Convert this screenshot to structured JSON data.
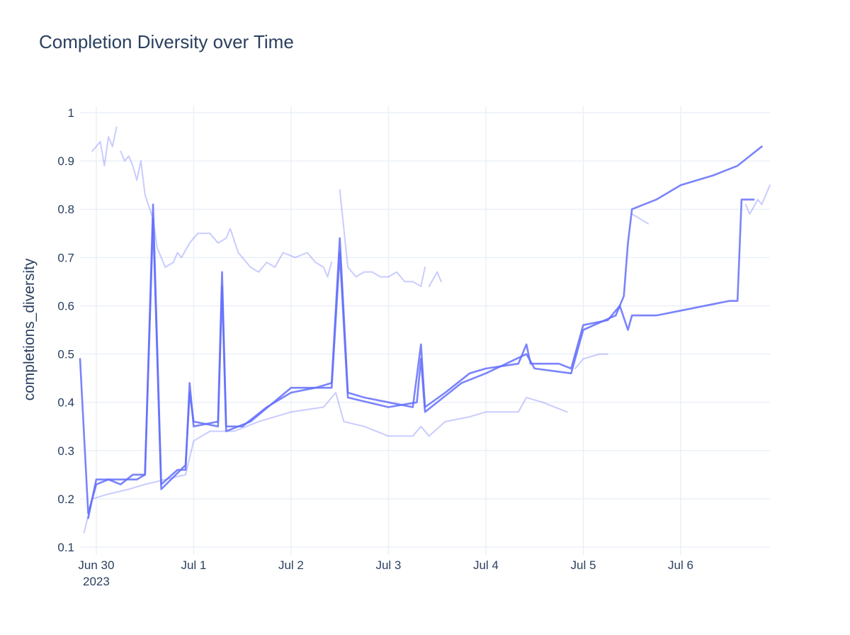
{
  "chart_data": {
    "type": "line",
    "title": "Completion Diversity over Time",
    "xlabel": "",
    "ylabel": "completions_diversity",
    "ylim": [
      0.1,
      1.0
    ],
    "xlim": [
      "2023-06-29T20:00",
      "2023-07-06T22:00"
    ],
    "x_ticks": [
      {
        "x": "2023-06-30T00:00",
        "label": "Jun 30",
        "sublabel": "2023"
      },
      {
        "x": "2023-07-01T00:00",
        "label": "Jul 1"
      },
      {
        "x": "2023-07-02T00:00",
        "label": "Jul 2"
      },
      {
        "x": "2023-07-03T00:00",
        "label": "Jul 3"
      },
      {
        "x": "2023-07-04T00:00",
        "label": "Jul 4"
      },
      {
        "x": "2023-07-05T00:00",
        "label": "Jul 5"
      },
      {
        "x": "2023-07-06T00:00",
        "label": "Jul 6"
      }
    ],
    "y_ticks": [
      0.1,
      0.2,
      0.3,
      0.4,
      0.5,
      0.6,
      0.7,
      0.8,
      0.9,
      1
    ],
    "y_tick_labels": [
      "0.1",
      "0.2",
      "0.3",
      "0.4",
      "0.5",
      "0.6",
      "0.7",
      "0.8",
      "0.9",
      "1"
    ],
    "grid": true,
    "legend": "none",
    "color": "#636efa",
    "series": [
      {
        "values": [
          [
            "2023-06-29T20:00",
            0.49
          ],
          [
            "2023-06-29T22:00",
            0.17
          ],
          [
            "2023-06-30T00:00",
            0.23
          ],
          [
            "2023-06-30T03:00",
            0.24
          ],
          [
            "2023-06-30T06:00",
            0.23
          ],
          [
            "2023-06-30T09:00",
            0.25
          ],
          [
            "2023-06-30T12:00",
            0.25
          ],
          [
            "2023-06-30T14:00",
            0.81
          ],
          [
            "2023-06-30T16:00",
            0.23
          ],
          [
            "2023-06-30T20:00",
            0.26
          ],
          [
            "2023-06-30T22:00",
            0.26
          ],
          [
            "2023-06-30T23:00",
            0.44
          ],
          [
            "2023-07-01T00:00",
            0.35
          ],
          [
            "2023-07-01T06:00",
            0.36
          ],
          [
            "2023-07-01T07:00",
            0.67
          ],
          [
            "2023-07-01T08:00",
            0.35
          ],
          [
            "2023-07-01T12:00",
            0.35
          ],
          [
            "2023-07-01T18:00",
            0.39
          ],
          [
            "2023-07-02T00:00",
            0.42
          ],
          [
            "2023-07-02T06:00",
            0.43
          ],
          [
            "2023-07-02T10:00",
            0.44
          ],
          [
            "2023-07-02T12:00",
            0.74
          ],
          [
            "2023-07-02T14:00",
            0.42
          ],
          [
            "2023-07-02T18:00",
            0.41
          ],
          [
            "2023-07-03T00:00",
            0.4
          ],
          [
            "2023-07-03T06:00",
            0.39
          ],
          [
            "2023-07-03T08:00",
            0.52
          ],
          [
            "2023-07-03T09:00",
            0.39
          ],
          [
            "2023-07-03T14:00",
            0.42
          ],
          [
            "2023-07-03T20:00",
            0.46
          ],
          [
            "2023-07-04T00:00",
            0.47
          ],
          [
            "2023-07-04T08:00",
            0.48
          ],
          [
            "2023-07-04T10:00",
            0.52
          ],
          [
            "2023-07-04T11:00",
            0.48
          ],
          [
            "2023-07-04T18:00",
            0.48
          ],
          [
            "2023-07-04T21:00",
            0.47
          ],
          [
            "2023-07-05T00:00",
            0.56
          ],
          [
            "2023-07-05T06:00",
            0.57
          ],
          [
            "2023-07-05T09:00",
            0.6
          ],
          [
            "2023-07-05T11:00",
            0.55
          ],
          [
            "2023-07-05T12:00",
            0.58
          ],
          [
            "2023-07-05T18:00",
            0.58
          ],
          [
            "2023-07-06T00:00",
            0.59
          ],
          [
            "2023-07-06T12:00",
            0.61
          ],
          [
            "2023-07-06T14:00",
            0.61
          ],
          [
            "2023-07-06T15:00",
            0.82
          ],
          [
            "2023-07-06T18:00",
            0.82
          ]
        ]
      },
      {
        "values": [
          [
            "2023-06-29T22:00",
            0.16
          ],
          [
            "2023-06-30T00:00",
            0.24
          ],
          [
            "2023-06-30T05:00",
            0.24
          ],
          [
            "2023-06-30T10:00",
            0.24
          ],
          [
            "2023-06-30T12:00",
            0.25
          ],
          [
            "2023-06-30T14:00",
            0.78
          ],
          [
            "2023-06-30T16:00",
            0.22
          ],
          [
            "2023-06-30T22:00",
            0.27
          ],
          [
            "2023-06-30T23:00",
            0.42
          ],
          [
            "2023-07-01T00:00",
            0.36
          ],
          [
            "2023-07-01T06:00",
            0.35
          ],
          [
            "2023-07-01T07:00",
            0.64
          ],
          [
            "2023-07-01T08:00",
            0.34
          ],
          [
            "2023-07-01T14:00",
            0.36
          ],
          [
            "2023-07-02T00:00",
            0.43
          ],
          [
            "2023-07-02T10:00",
            0.43
          ],
          [
            "2023-07-02T12:00",
            0.71
          ],
          [
            "2023-07-02T14:00",
            0.41
          ],
          [
            "2023-07-03T00:00",
            0.39
          ],
          [
            "2023-07-03T07:00",
            0.4
          ],
          [
            "2023-07-03T08:00",
            0.49
          ],
          [
            "2023-07-03T09:00",
            0.38
          ],
          [
            "2023-07-03T18:00",
            0.44
          ],
          [
            "2023-07-04T00:00",
            0.46
          ],
          [
            "2023-07-04T10:00",
            0.5
          ],
          [
            "2023-07-04T12:00",
            0.47
          ],
          [
            "2023-07-04T21:00",
            0.46
          ],
          [
            "2023-07-05T00:00",
            0.55
          ],
          [
            "2023-07-05T08:00",
            0.58
          ],
          [
            "2023-07-05T10:00",
            0.62
          ],
          [
            "2023-07-05T11:00",
            0.73
          ],
          [
            "2023-07-05T12:00",
            0.8
          ],
          [
            "2023-07-05T18:00",
            0.82
          ],
          [
            "2023-07-06T00:00",
            0.85
          ],
          [
            "2023-07-06T08:00",
            0.87
          ],
          [
            "2023-07-06T14:00",
            0.89
          ],
          [
            "2023-07-06T20:00",
            0.93
          ]
        ]
      },
      {
        "values": [
          [
            "2023-06-29T21:00",
            0.13
          ],
          [
            "2023-06-29T23:00",
            0.2
          ],
          [
            "2023-06-30T03:00",
            0.21
          ],
          [
            "2023-06-30T08:00",
            0.22
          ],
          [
            "2023-06-30T12:00",
            0.23
          ],
          [
            "2023-06-30T17:00",
            0.24
          ],
          [
            "2023-06-30T22:00",
            0.25
          ],
          [
            "2023-07-01T00:00",
            0.32
          ],
          [
            "2023-07-01T04:00",
            0.34
          ],
          [
            "2023-07-01T10:00",
            0.34
          ],
          [
            "2023-07-01T16:00",
            0.36
          ],
          [
            "2023-07-02T00:00",
            0.38
          ],
          [
            "2023-07-02T08:00",
            0.39
          ],
          [
            "2023-07-02T11:00",
            0.42
          ],
          [
            "2023-07-02T13:00",
            0.36
          ],
          [
            "2023-07-02T18:00",
            0.35
          ],
          [
            "2023-07-03T00:00",
            0.33
          ],
          [
            "2023-07-03T06:00",
            0.33
          ],
          [
            "2023-07-03T08:00",
            0.35
          ],
          [
            "2023-07-03T10:00",
            0.33
          ],
          [
            "2023-07-03T14:00",
            0.36
          ],
          [
            "2023-07-03T20:00",
            0.37
          ],
          [
            "2023-07-04T00:00",
            0.38
          ],
          [
            "2023-07-04T08:00",
            0.38
          ],
          [
            "2023-07-04T10:00",
            0.41
          ],
          [
            "2023-07-04T14:00",
            0.4
          ],
          [
            "2023-07-04T20:00",
            0.38
          ]
        ]
      },
      {
        "values": [
          [
            "2023-07-04T22:00",
            0.47
          ],
          [
            "2023-07-05T00:00",
            0.49
          ],
          [
            "2023-07-05T04:00",
            0.5
          ],
          [
            "2023-07-05T06:00",
            0.5
          ]
        ]
      },
      {
        "values": [
          [
            "2023-06-29T23:00",
            0.92
          ],
          [
            "2023-06-30T01:00",
            0.94
          ],
          [
            "2023-06-30T02:00",
            0.89
          ],
          [
            "2023-06-30T03:00",
            0.95
          ],
          [
            "2023-06-30T04:00",
            0.93
          ],
          [
            "2023-06-30T05:00",
            0.97
          ]
        ]
      },
      {
        "values": [
          [
            "2023-06-30T06:00",
            0.92
          ],
          [
            "2023-06-30T07:00",
            0.9
          ],
          [
            "2023-06-30T08:00",
            0.91
          ],
          [
            "2023-06-30T09:00",
            0.89
          ],
          [
            "2023-06-30T10:00",
            0.86
          ],
          [
            "2023-06-30T11:00",
            0.9
          ],
          [
            "2023-06-30T12:00",
            0.83
          ],
          [
            "2023-06-30T14:00",
            0.78
          ],
          [
            "2023-06-30T15:00",
            0.72
          ],
          [
            "2023-06-30T17:00",
            0.68
          ],
          [
            "2023-06-30T19:00",
            0.69
          ],
          [
            "2023-06-30T20:00",
            0.71
          ],
          [
            "2023-06-30T21:00",
            0.7
          ],
          [
            "2023-06-30T23:00",
            0.73
          ],
          [
            "2023-07-01T01:00",
            0.75
          ],
          [
            "2023-07-01T04:00",
            0.75
          ],
          [
            "2023-07-01T06:00",
            0.73
          ],
          [
            "2023-07-01T08:00",
            0.74
          ],
          [
            "2023-07-01T09:00",
            0.76
          ],
          [
            "2023-07-01T11:00",
            0.71
          ],
          [
            "2023-07-01T14:00",
            0.68
          ],
          [
            "2023-07-01T16:00",
            0.67
          ],
          [
            "2023-07-01T18:00",
            0.69
          ],
          [
            "2023-07-01T20:00",
            0.68
          ],
          [
            "2023-07-01T22:00",
            0.71
          ],
          [
            "2023-07-02T01:00",
            0.7
          ],
          [
            "2023-07-02T04:00",
            0.71
          ],
          [
            "2023-07-02T06:00",
            0.69
          ],
          [
            "2023-07-02T08:00",
            0.68
          ],
          [
            "2023-07-02T09:00",
            0.66
          ],
          [
            "2023-07-02T10:00",
            0.69
          ]
        ]
      },
      {
        "values": [
          [
            "2023-07-02T12:00",
            0.84
          ],
          [
            "2023-07-02T14:00",
            0.68
          ],
          [
            "2023-07-02T16:00",
            0.66
          ],
          [
            "2023-07-02T18:00",
            0.67
          ],
          [
            "2023-07-02T20:00",
            0.67
          ],
          [
            "2023-07-02T22:00",
            0.66
          ],
          [
            "2023-07-03T00:00",
            0.66
          ],
          [
            "2023-07-03T02:00",
            0.67
          ],
          [
            "2023-07-03T04:00",
            0.65
          ],
          [
            "2023-07-03T06:00",
            0.65
          ],
          [
            "2023-07-03T08:00",
            0.64
          ],
          [
            "2023-07-03T09:00",
            0.68
          ]
        ]
      },
      {
        "values": [
          [
            "2023-07-03T10:00",
            0.64
          ],
          [
            "2023-07-03T12:00",
            0.67
          ],
          [
            "2023-07-03T13:00",
            0.65
          ]
        ]
      },
      {
        "values": [
          [
            "2023-07-05T12:00",
            0.79
          ],
          [
            "2023-07-05T14:00",
            0.78
          ],
          [
            "2023-07-05T16:00",
            0.77
          ]
        ]
      },
      {
        "values": [
          [
            "2023-07-06T16:00",
            0.81
          ],
          [
            "2023-07-06T17:00",
            0.79
          ],
          [
            "2023-07-06T19:00",
            0.82
          ],
          [
            "2023-07-06T20:00",
            0.81
          ],
          [
            "2023-07-06T22:00",
            0.85
          ]
        ]
      }
    ]
  }
}
